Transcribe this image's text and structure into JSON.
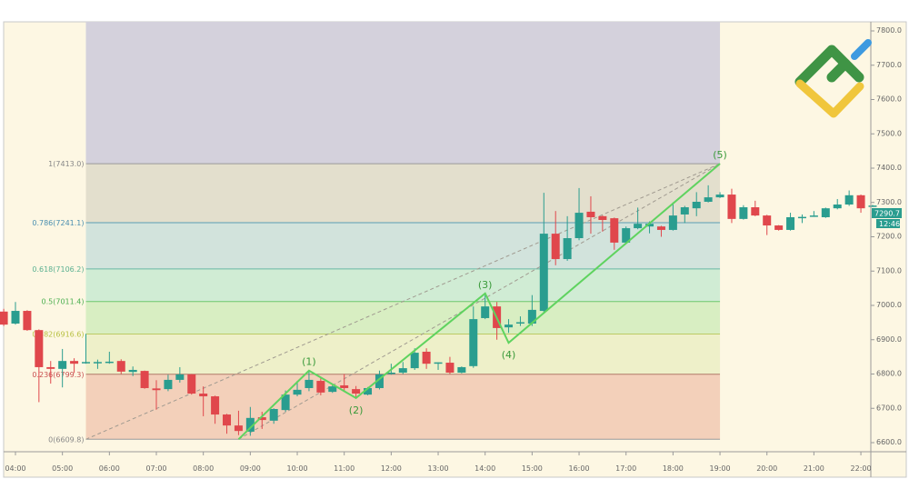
{
  "chart_data": {
    "type": "candlestick",
    "interval": "15m",
    "y_axis": {
      "ylim": [
        6540,
        7826
      ],
      "ticks": [
        "7800.0",
        "7700.0",
        "7600.0",
        "7500.0",
        "7400.0",
        "7300.0",
        "7200.0",
        "7100.0",
        "7000.0",
        "6900.0",
        "6800.0",
        "6700.0",
        "6600.0"
      ],
      "position": "right"
    },
    "x_axis": {
      "ticks": [
        "04:00",
        "05:00",
        "06:00",
        "07:00",
        "08:00",
        "09:00",
        "10:00",
        "11:00",
        "12:00",
        "13:00",
        "14:00",
        "15:00",
        "16:00",
        "17:00",
        "18:00",
        "19:00",
        "20:00",
        "21:00",
        "22:00"
      ]
    },
    "colors": {
      "up": "#2a9d8f",
      "down": "#e0474c",
      "background": "#fdf7e3",
      "wave": "#5fd35f"
    },
    "candles": [
      [
        "03:45",
        6982,
        6990,
        6940,
        6944
      ],
      [
        "04:00",
        6947,
        7010,
        6944,
        6984
      ],
      [
        "04:15",
        6984,
        6986,
        6926,
        6928
      ],
      [
        "04:30",
        6928,
        6930,
        6718,
        6820
      ],
      [
        "04:45",
        6820,
        6838,
        6772,
        6815
      ],
      [
        "05:00",
        6815,
        6873,
        6761,
        6838
      ],
      [
        "05:15",
        6838,
        6846,
        6803,
        6830
      ],
      [
        "05:30",
        6832,
        6917,
        6830,
        6835
      ],
      [
        "05:45",
        6834,
        6842,
        6815,
        6835
      ],
      [
        "06:00",
        6834,
        6865,
        6830,
        6836
      ],
      [
        "06:15",
        6838,
        6843,
        6800,
        6807
      ],
      [
        "06:30",
        6806,
        6822,
        6794,
        6812
      ],
      [
        "06:45",
        6809,
        6810,
        6757,
        6759
      ],
      [
        "07:00",
        6758,
        6782,
        6696,
        6753
      ],
      [
        "07:15",
        6756,
        6798,
        6750,
        6783
      ],
      [
        "07:30",
        6783,
        6820,
        6775,
        6799
      ],
      [
        "07:45",
        6799,
        6800,
        6740,
        6743
      ],
      [
        "08:00",
        6743,
        6764,
        6677,
        6735
      ],
      [
        "08:15",
        6735,
        6737,
        6655,
        6682
      ],
      [
        "08:30",
        6682,
        6684,
        6626,
        6650
      ],
      [
        "08:45",
        6650,
        6693,
        6622,
        6634
      ],
      [
        "09:00",
        6632,
        6704,
        6620,
        6672
      ],
      [
        "09:15",
        6674,
        6690,
        6640,
        6666
      ],
      [
        "09:30",
        6664,
        6700,
        6655,
        6698
      ],
      [
        "09:45",
        6695,
        6752,
        6690,
        6740
      ],
      [
        "10:00",
        6740,
        6780,
        6735,
        6754
      ],
      [
        "10:15",
        6759,
        6810,
        6750,
        6783
      ],
      [
        "10:30",
        6780,
        6790,
        6738,
        6746
      ],
      [
        "10:45",
        6748,
        6768,
        6745,
        6764
      ],
      [
        "11:00",
        6767,
        6800,
        6750,
        6759
      ],
      [
        "11:15",
        6756,
        6765,
        6728,
        6743
      ],
      [
        "11:30",
        6740,
        6762,
        6738,
        6759
      ],
      [
        "11:45",
        6759,
        6810,
        6755,
        6799
      ],
      [
        "12:00",
        6801,
        6830,
        6798,
        6804
      ],
      [
        "12:15",
        6804,
        6835,
        6800,
        6817
      ],
      [
        "12:30",
        6817,
        6875,
        6812,
        6862
      ],
      [
        "12:45",
        6865,
        6875,
        6815,
        6830
      ],
      [
        "13:00",
        6833,
        6834,
        6812,
        6834
      ],
      [
        "13:15",
        6833,
        6850,
        6800,
        6804
      ],
      [
        "13:30",
        6804,
        6822,
        6802,
        6820
      ],
      [
        "13:45",
        6823,
        6997,
        6818,
        6960
      ],
      [
        "14:00",
        6963,
        7030,
        6960,
        6997
      ],
      [
        "14:15",
        6997,
        7010,
        6900,
        6934
      ],
      [
        "14:30",
        6936,
        6960,
        6920,
        6944
      ],
      [
        "14:45",
        6950,
        6968,
        6940,
        6951
      ],
      [
        "15:00",
        6947,
        7030,
        6940,
        6987
      ],
      [
        "15:15",
        6984,
        7328,
        6980,
        7209
      ],
      [
        "15:30",
        7209,
        7275,
        7117,
        7135
      ],
      [
        "15:45",
        7135,
        7260,
        7130,
        7196
      ],
      [
        "16:00",
        7196,
        7342,
        7190,
        7270
      ],
      [
        "16:15",
        7273,
        7318,
        7209,
        7257
      ],
      [
        "16:30",
        7260,
        7262,
        7215,
        7249
      ],
      [
        "16:45",
        7254,
        7256,
        7162,
        7183
      ],
      [
        "17:00",
        7183,
        7230,
        7180,
        7225
      ],
      [
        "17:15",
        7225,
        7285,
        7222,
        7238
      ],
      [
        "17:30",
        7230,
        7245,
        7210,
        7238
      ],
      [
        "17:45",
        7230,
        7232,
        7200,
        7220
      ],
      [
        "18:00",
        7220,
        7300,
        7218,
        7262
      ],
      [
        "18:15",
        7265,
        7290,
        7240,
        7286
      ],
      [
        "18:30",
        7283,
        7330,
        7260,
        7302
      ],
      [
        "18:45",
        7302,
        7350,
        7300,
        7315
      ],
      [
        "19:00",
        7315,
        7330,
        7313,
        7323
      ],
      [
        "19:15",
        7323,
        7340,
        7240,
        7252
      ],
      [
        "19:30",
        7252,
        7292,
        7250,
        7286
      ],
      [
        "19:45",
        7286,
        7305,
        7260,
        7262
      ],
      [
        "20:00",
        7262,
        7264,
        7205,
        7233
      ],
      [
        "20:15",
        7233,
        7234,
        7218,
        7220
      ],
      [
        "20:30",
        7220,
        7270,
        7218,
        7257
      ],
      [
        "20:45",
        7257,
        7265,
        7240,
        7258
      ],
      [
        "21:00",
        7260,
        7275,
        7258,
        7262
      ],
      [
        "21:15",
        7257,
        7285,
        7255,
        7283
      ],
      [
        "21:30",
        7283,
        7310,
        7280,
        7294
      ],
      [
        "21:45",
        7294,
        7335,
        7290,
        7321
      ],
      [
        "22:00",
        7321,
        7323,
        7270,
        7283
      ],
      [
        "22:15",
        7288,
        7293,
        7287,
        7291
      ]
    ],
    "fibonacci": {
      "start_time": "05:30",
      "end_time": "19:00",
      "levels": [
        {
          "ratio": 1,
          "price": 7413.0,
          "label": "1(7413.0)",
          "line": "#9a9a9a",
          "text": "#888888",
          "fill": "#e3dfcd"
        },
        {
          "ratio": 0.786,
          "price": 7241.1,
          "label": "0.786(7241.1)",
          "line": "#5a9cb3",
          "text": "#4a8fb0",
          "fill": "#d2e3dc"
        },
        {
          "ratio": 0.618,
          "price": 7106.2,
          "label": "0.618(7106.2)",
          "line": "#6ab8a4",
          "text": "#5ab090",
          "fill": "#d0ecd4"
        },
        {
          "ratio": 0.5,
          "price": 7011.4,
          "label": "0.5(7011.4)",
          "line": "#6cc86c",
          "text": "#4caf50",
          "fill": "#d8eec2"
        },
        {
          "ratio": 0.382,
          "price": 6916.6,
          "label": "0.382(6916.6)",
          "line": "#bccb64",
          "text": "#b8c040",
          "fill": "#eef0c9"
        },
        {
          "ratio": 0.236,
          "price": 6799.3,
          "label": "0.236(6799.3)",
          "line": "#b07868",
          "text": "#c85050",
          "fill": "#f3d0ba"
        },
        {
          "ratio": 0,
          "price": 6609.8,
          "label": "0(6609.8)",
          "line": "#9a9a9a",
          "text": "#888888",
          "fill": null
        }
      ],
      "above_fill": "#d4d1dc"
    },
    "trend_lines": [
      {
        "from": [
          "05:30",
          6609.8
        ],
        "to": [
          "19:00",
          7413.0
        ],
        "style": "dashed"
      },
      {
        "from": [
          "08:45",
          6609.8
        ],
        "to": [
          "19:00",
          7413.0
        ],
        "style": "dashed"
      }
    ],
    "elliott_wave": [
      {
        "label": "",
        "time": "08:45",
        "price": 6609.8
      },
      {
        "label": "(1)",
        "time": "10:15",
        "price": 6810
      },
      {
        "label": "(2)",
        "time": "11:15",
        "price": 6730
      },
      {
        "label": "(3)",
        "time": "14:00",
        "price": 7035
      },
      {
        "label": "(4)",
        "time": "14:30",
        "price": 6891
      },
      {
        "label": "(5)",
        "time": "19:00",
        "price": 7413
      }
    ],
    "last_price": {
      "price": "7290.7",
      "countdown": "12:46",
      "color": "#2a9d8f"
    }
  }
}
